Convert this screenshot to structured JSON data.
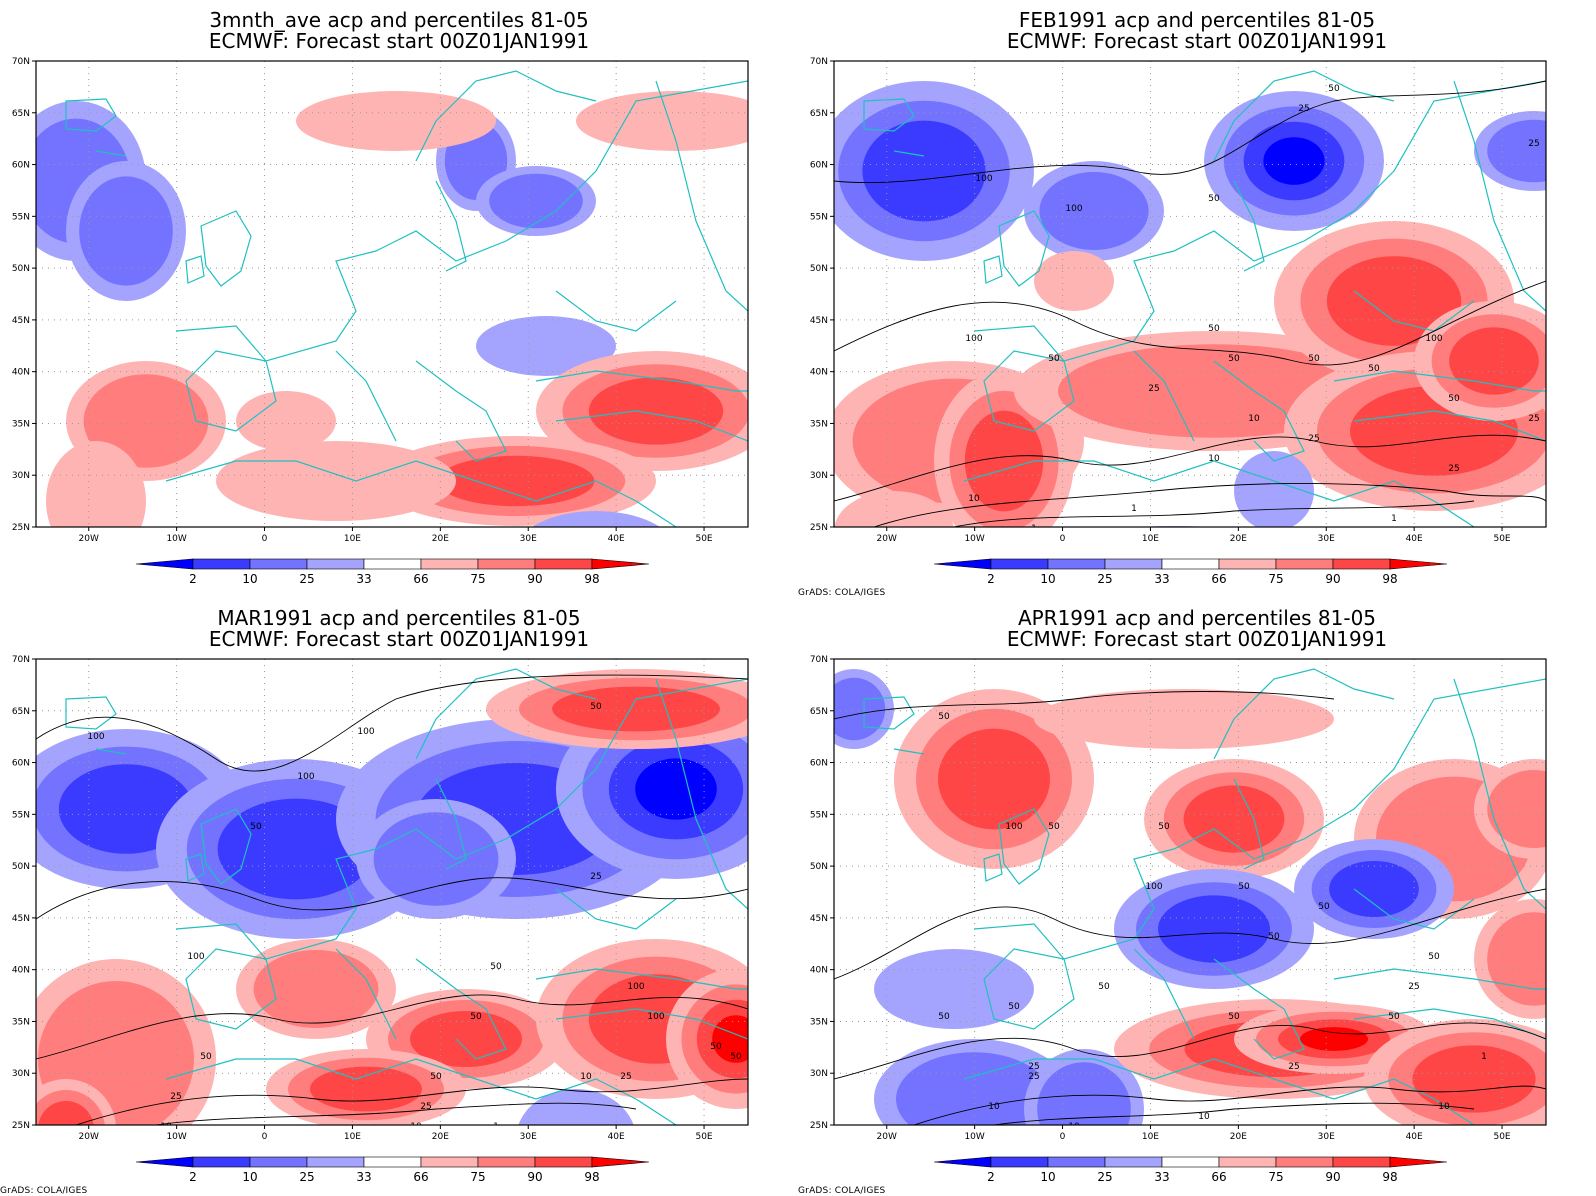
{
  "colorbar": {
    "labels": [
      "2",
      "10",
      "25",
      "33",
      "66",
      "75",
      "90",
      "98"
    ],
    "colors": [
      "#0000ff",
      "#3b3bff",
      "#7373ff",
      "#a4a4ff",
      "#ffffff",
      "#ffb4b4",
      "#ff7d7d",
      "#ff4646",
      "#ff0000"
    ]
  },
  "axes": {
    "lat_labels": [
      "70N",
      "65N",
      "60N",
      "55N",
      "50N",
      "45N",
      "40N",
      "35N",
      "30N",
      "25N"
    ],
    "lon_labels": [
      "20W",
      "10W",
      "0",
      "10E",
      "20E",
      "30E",
      "40E",
      "50E"
    ]
  },
  "colors": {
    "coastline": "#20c0c0",
    "contour": "#000000"
  },
  "panels": [
    {
      "title1": "3mnth_ave acp and percentiles 81-05",
      "title2": "ECMWF: Forecast start 00Z01JAN1991",
      "credit": "",
      "contour_labels": []
    },
    {
      "title1": "FEB1991 acp and percentiles 81-05",
      "title2": "ECMWF: Forecast start 00Z01JAN1991",
      "credit": "GrADS: COLA/IGES",
      "contour_labels": [
        "50",
        "25",
        "25",
        "100",
        "100",
        "50",
        "100",
        "50",
        "50",
        "50",
        "50",
        "50",
        "25",
        "100",
        "50",
        "25",
        "10",
        "10",
        "25",
        "25",
        "10",
        "1",
        "1",
        "1"
      ]
    },
    {
      "title1": "MAR1991 acp and percentiles 81-05",
      "title2": "ECMWF: Forecast start 00Z01JAN1991",
      "credit": "GrADS: COLA/IGES",
      "contour_labels": [
        "50",
        "100",
        "100",
        "100",
        "50",
        "25",
        "100",
        "50",
        "100",
        "50",
        "100",
        "50",
        "25",
        "50",
        "25",
        "25",
        "10",
        "10",
        "50",
        "50",
        "10",
        "1",
        "50",
        "1"
      ]
    },
    {
      "title1": "APR1991 acp and percentiles 81-05",
      "title2": "ECMWF: Forecast start 00Z01JAN1991",
      "credit": "GrADS: COLA/IGES",
      "contour_labels": [
        "50",
        "100",
        "50",
        "50",
        "50",
        "50",
        "50",
        "50",
        "25",
        "100",
        "50",
        "50",
        "50",
        "50",
        "25",
        "25",
        "50",
        "25",
        "10",
        "10",
        "25",
        "10",
        "10",
        "1"
      ]
    }
  ]
}
